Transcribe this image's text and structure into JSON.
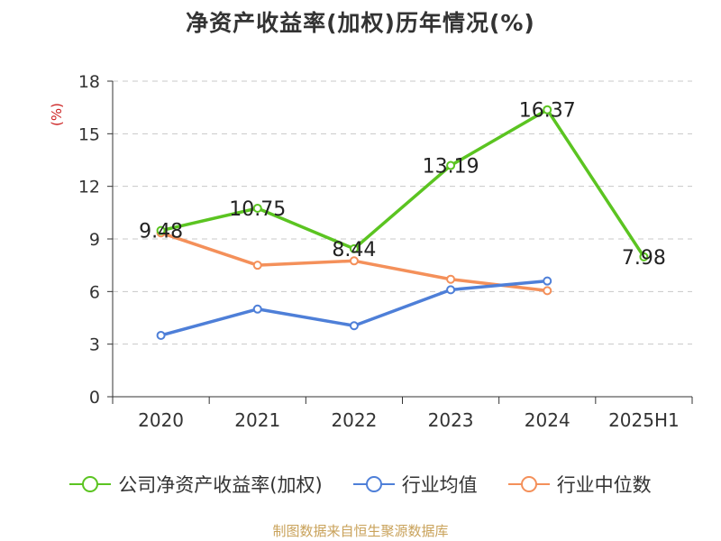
{
  "title": "净资产收益率(加权)历年情况(%)",
  "source": "制图数据来自恒生聚源数据库",
  "chart_data": {
    "type": "line",
    "title": "净资产收益率(加权)历年情况(%)",
    "ylabel": "(%)",
    "categories": [
      "2020",
      "2021",
      "2022",
      "2023",
      "2024",
      "2025H1"
    ],
    "ylim": [
      0,
      18
    ],
    "yticks": [
      "0",
      "3",
      "6",
      "9",
      "12",
      "15",
      "18"
    ],
    "grid": true,
    "legend_position": "bottom",
    "series": [
      {
        "name": "公司净资产收益率(加权)",
        "color": "#5bc421",
        "values": [
          9.48,
          10.75,
          8.44,
          13.19,
          16.37,
          7.98
        ],
        "labels": [
          "9.48",
          "10.75",
          "8.44",
          "13.19",
          "16.37",
          "7.98"
        ]
      },
      {
        "name": "行业均值",
        "color": "#4e7fd8",
        "values": [
          3.5,
          5.0,
          4.05,
          6.1,
          6.6,
          null
        ],
        "labels": []
      },
      {
        "name": "行业中位数",
        "color": "#f4905a",
        "values": [
          9.35,
          7.5,
          7.75,
          6.7,
          6.05,
          null
        ],
        "labels": []
      }
    ]
  }
}
